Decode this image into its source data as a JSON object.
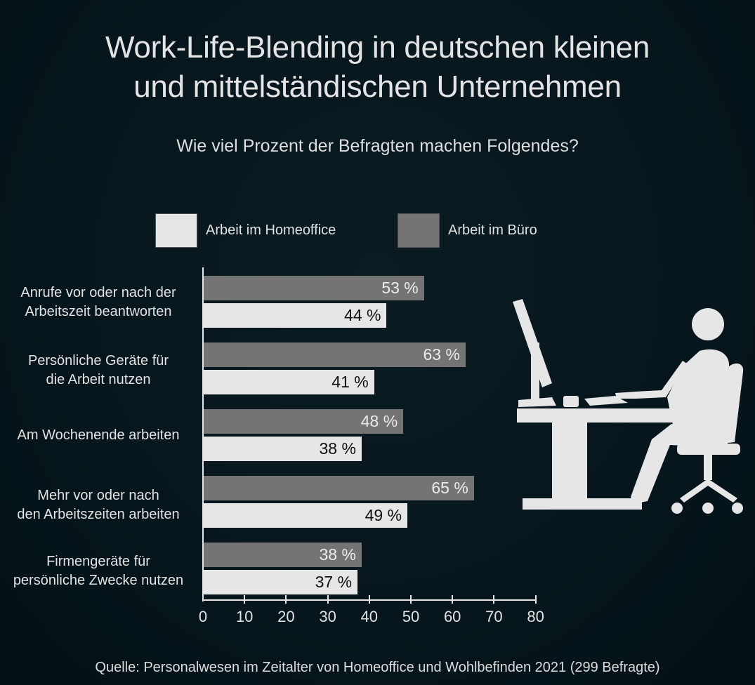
{
  "title_line1": "Work-Life-Blending in deutschen kleinen",
  "title_line2": "und mittelständischen Unternehmen",
  "subtitle": "Wie viel Prozent der Befragten machen Folgendes?",
  "legend": {
    "home": {
      "label": "Arbeit im Homeoffice",
      "color": "#e6e6e6"
    },
    "office": {
      "label": "Arbeit im Büro",
      "color": "#747474"
    }
  },
  "categories": [
    {
      "line1": "Anrufe vor oder nach der",
      "line2": "Arbeitszeit beantworten",
      "office": 53,
      "home": 44,
      "office_label": "53 %",
      "home_label": "44 %"
    },
    {
      "line1": "Persönliche Geräte für",
      "line2": "die Arbeit nutzen",
      "office": 63,
      "home": 41,
      "office_label": "63 %",
      "home_label": "41 %"
    },
    {
      "line1": "Am Wochenende arbeiten",
      "line2": "",
      "office": 48,
      "home": 38,
      "office_label": "48 %",
      "home_label": "38 %"
    },
    {
      "line1": "Mehr vor oder nach",
      "line2": "den Arbeitszeiten arbeiten",
      "office": 65,
      "home": 49,
      "office_label": "65 %",
      "home_label": "49 %"
    },
    {
      "line1": "Firmengeräte für",
      "line2": "persönliche Zwecke nutzen",
      "office": 38,
      "home": 37,
      "office_label": "38 %",
      "home_label": "37 %"
    }
  ],
  "x_ticks": [
    "0",
    "10",
    "20",
    "30",
    "40",
    "50",
    "60",
    "70",
    "80"
  ],
  "source": "Quelle: Personalwesen im Zeitalter von Homeoffice und Wohlbefinden 2021 (299 Befragte)",
  "illustration": "person-at-desk-icon",
  "chart_data": {
    "type": "bar",
    "orientation": "horizontal",
    "title": "Work-Life-Blending in deutschen kleinen und mittelständischen Unternehmen",
    "subtitle": "Wie viel Prozent der Befragten machen Folgendes?",
    "categories": [
      "Anrufe vor oder nach der Arbeitszeit beantworten",
      "Persönliche Geräte für die Arbeit nutzen",
      "Am Wochenende arbeiten",
      "Mehr vor oder nach den Arbeitszeiten arbeiten",
      "Firmengeräte für persönliche Zwecke nutzen"
    ],
    "series": [
      {
        "name": "Arbeit im Büro",
        "color": "#747474",
        "values": [
          53,
          63,
          48,
          65,
          38
        ]
      },
      {
        "name": "Arbeit im Homeoffice",
        "color": "#e6e6e6",
        "values": [
          44,
          41,
          38,
          49,
          37
        ]
      }
    ],
    "xlabel": "",
    "ylabel": "",
    "xlim": [
      0,
      80
    ],
    "x_ticks": [
      0,
      10,
      20,
      30,
      40,
      50,
      60,
      70,
      80
    ],
    "value_suffix": " %",
    "grid": false,
    "legend_position": "top",
    "source": "Quelle: Personalwesen im Zeitalter von Homeoffice und Wohlbefinden 2021 (299 Befragte)"
  }
}
